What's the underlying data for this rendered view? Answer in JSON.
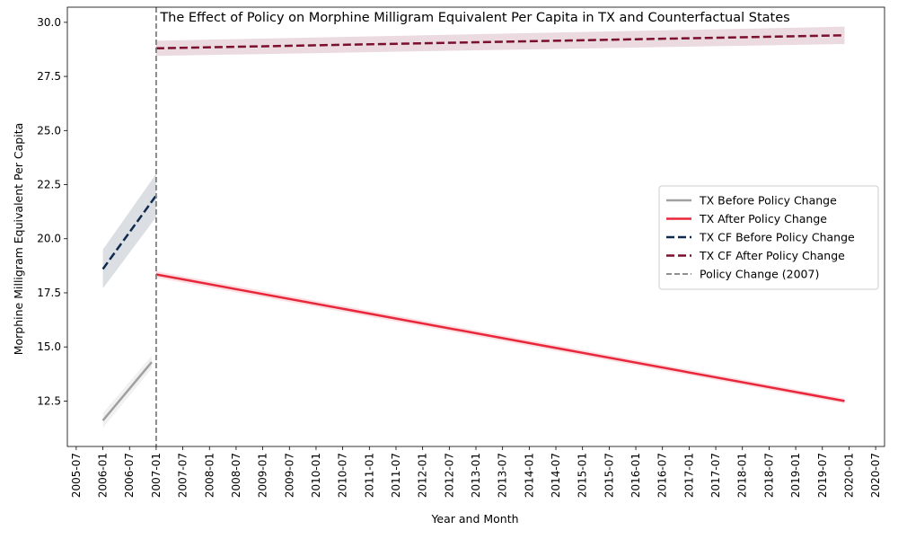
{
  "chart_data": {
    "type": "line",
    "title": "The Effect of Policy on Morphine Milligram Equivalent Per Capita in TX and Counterfactual States",
    "xlabel": "Year and Month",
    "ylabel": "Morphine Milligram Equivalent Per Capita",
    "x_tick_labels": [
      "2005-07",
      "2006-01",
      "2006-07",
      "2007-01",
      "2007-07",
      "2008-01",
      "2008-07",
      "2009-01",
      "2009-07",
      "2010-01",
      "2010-07",
      "2011-01",
      "2011-07",
      "2012-01",
      "2012-07",
      "2013-01",
      "2013-07",
      "2014-01",
      "2014-07",
      "2015-01",
      "2015-07",
      "2016-01",
      "2016-07",
      "2017-01",
      "2017-07",
      "2018-01",
      "2018-07",
      "2019-01",
      "2019-07",
      "2020-01",
      "2020-07"
    ],
    "xlim": [
      "2005-05",
      "2020-09"
    ],
    "y_tick_labels": [
      "12.5",
      "15.0",
      "17.5",
      "20.0",
      "22.5",
      "25.0",
      "27.5",
      "30.0"
    ],
    "y_ticks": [
      12.5,
      15.0,
      17.5,
      20.0,
      22.5,
      25.0,
      27.5,
      30.0
    ],
    "ylim": [
      10.4,
      30.7
    ],
    "grid": false,
    "legend_position": "center-right",
    "policy_change": {
      "date": "2007-01",
      "label": "Policy Change (2007)",
      "color": "#808080",
      "style": "dashed"
    },
    "series": [
      {
        "name": "TX Before Policy Change",
        "color": "#a0a0a0",
        "style": "solid",
        "x": [
          "2006-01",
          "2006-12"
        ],
        "y": [
          11.6,
          14.3
        ],
        "ci_halfwidth": [
          0.35,
          0.3
        ]
      },
      {
        "name": "TX After Policy Change",
        "color": "#e8273b",
        "style": "solid",
        "x": [
          "2007-01",
          "2019-12"
        ],
        "y": [
          18.35,
          12.5
        ],
        "ci_halfwidth": [
          0.15,
          0.12
        ]
      },
      {
        "name": "TX CF Before Policy Change",
        "color": "#0f2a4d",
        "style": "dashed",
        "x": [
          "2006-01",
          "2007-01"
        ],
        "y": [
          18.6,
          22.0
        ],
        "ci_halfwidth": [
          0.9,
          1.0
        ]
      },
      {
        "name": "TX CF After Policy Change",
        "color": "#7a0f2e",
        "style": "dashed",
        "x": [
          "2007-01",
          "2019-12"
        ],
        "y": [
          28.8,
          29.4
        ],
        "ci_halfwidth": [
          0.35,
          0.4
        ]
      }
    ]
  }
}
